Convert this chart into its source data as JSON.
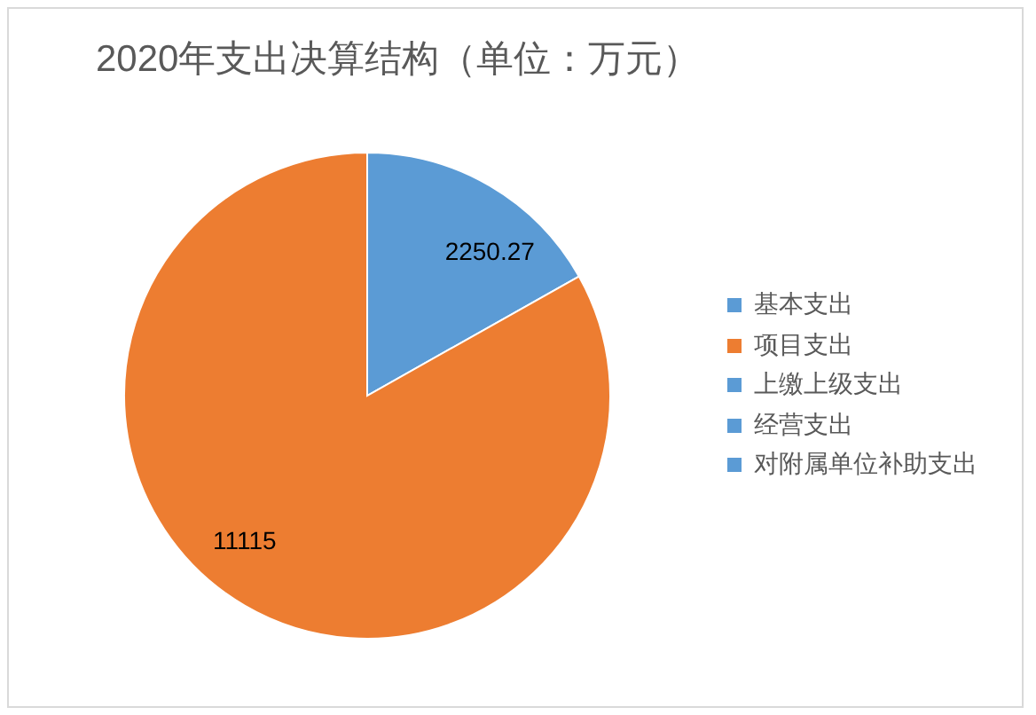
{
  "chart_data": {
    "type": "pie",
    "title": "2020年支出决算结构（单位：万元）",
    "categories": [
      "基本支出",
      "项目支出",
      "上缴上级支出",
      "经营支出",
      "对附属单位补助支出"
    ],
    "values": [
      2250.27,
      11115,
      0,
      0,
      0
    ],
    "colors": [
      "#5b9bd5",
      "#ed7d31",
      "#5b9bd5",
      "#5b9bd5",
      "#5b9bd5"
    ],
    "value_labels": [
      "2250.27",
      "11115",
      null,
      null,
      null
    ],
    "legend": "right"
  }
}
